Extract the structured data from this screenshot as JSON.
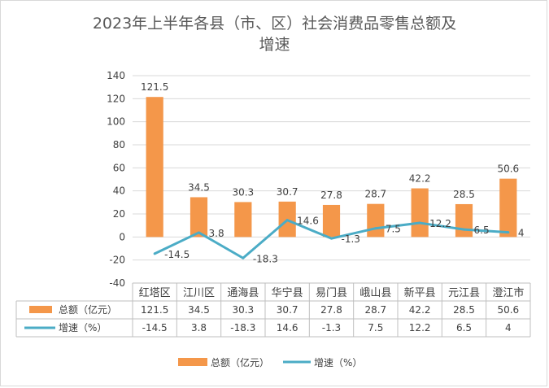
{
  "chart_data": {
    "type": "bar",
    "title_line1": "2023年上半年各县（市、区）社会消费品零售总额及",
    "title_line2": "增速",
    "categories": [
      "红塔区",
      "江川区",
      "通海县",
      "华宁县",
      "易门县",
      "峨山县",
      "新平县",
      "元江县",
      "澄江市"
    ],
    "series": [
      {
        "name": "总额（亿元）",
        "type": "bar",
        "color": "#f4974a",
        "values": [
          121.5,
          34.5,
          30.3,
          30.7,
          27.8,
          28.7,
          42.2,
          28.5,
          50.6
        ],
        "labels": [
          "121.5",
          "34.5",
          "30.3",
          "30.7",
          "27.8",
          "28.7",
          "42.2",
          "28.5",
          "50.6"
        ]
      },
      {
        "name": "增速（%）",
        "type": "line",
        "color": "#4bacc6",
        "values": [
          -14.5,
          3.8,
          -18.3,
          14.6,
          -1.3,
          7.5,
          12.2,
          6.5,
          4
        ],
        "labels": [
          "-14.5",
          "3.8",
          "-18.3",
          "14.6",
          "-1.3",
          "7.5",
          "12.2",
          "6.5",
          "4"
        ]
      }
    ],
    "ylim": [
      -40,
      140
    ],
    "yticks": [
      "-40",
      "-20",
      "0",
      "20",
      "40",
      "60",
      "80",
      "100",
      "120",
      "140"
    ],
    "grid": true,
    "legend": "bottom"
  }
}
